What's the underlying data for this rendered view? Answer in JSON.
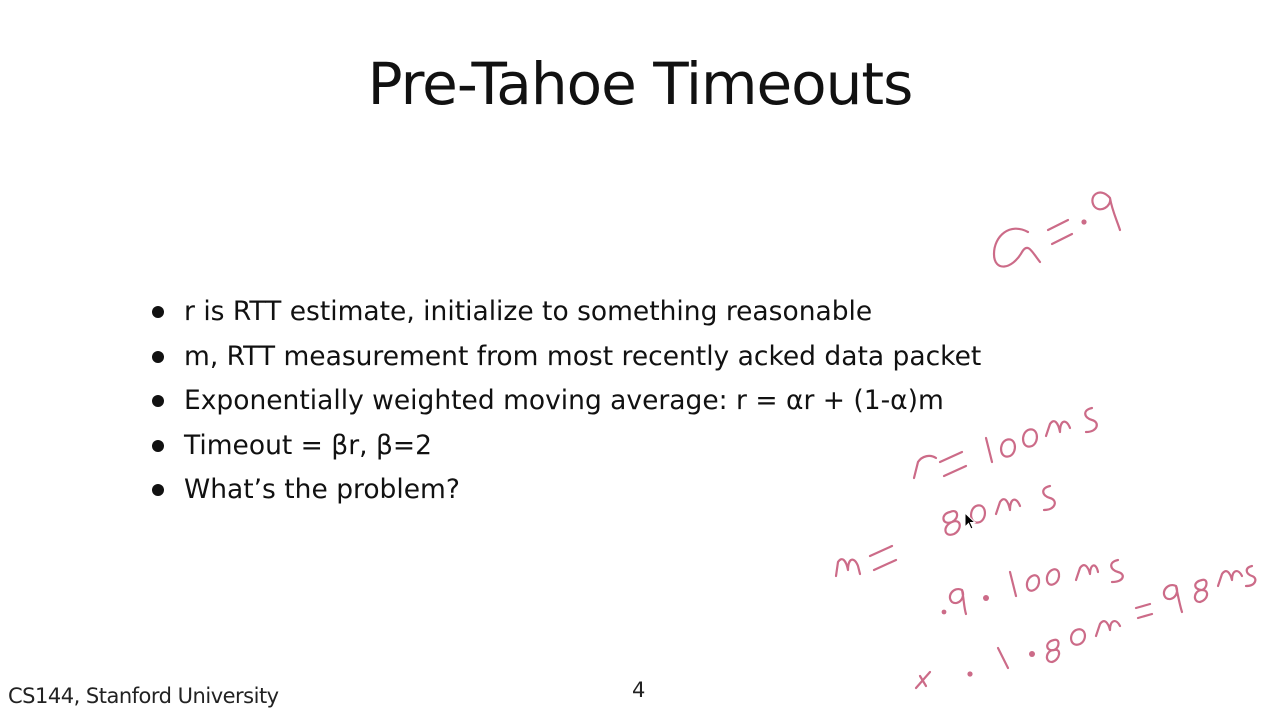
{
  "slide": {
    "title": "Pre-Tahoe Timeouts",
    "bullets": [
      {
        "text": "r is RTT estimate, initialize to something reasonable"
      },
      {
        "text": "m, RTT measurement from most recently acked data packet"
      },
      {
        "text": "Exponentially weighted moving average: r = αr + (1-α)m"
      },
      {
        "text": "Timeout = βr, β=2"
      },
      {
        "text": "What’s the problem?"
      }
    ],
    "footer": "CS144, Stanford University",
    "page_number": "4"
  },
  "annotations": {
    "ink_color": "#cc6b88",
    "handwritten_notes": [
      "α = .9",
      "r = 100ms",
      "m = 80ms",
      ".9 · 100 ms",
      "+ .1 · 80ms = 98ms"
    ]
  },
  "cursor": {
    "icon": "mouse-pointer-icon"
  }
}
